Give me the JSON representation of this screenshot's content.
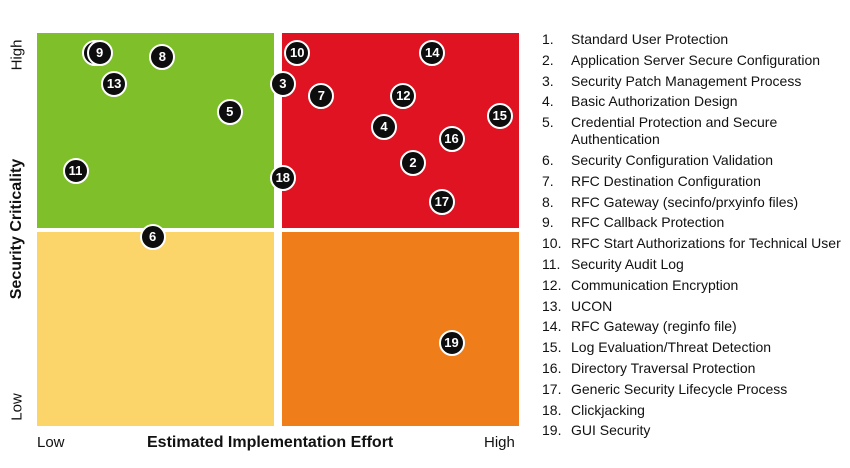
{
  "axes": {
    "y_title": "Security Criticality",
    "y_high": "High",
    "y_low": "Low",
    "x_title": "Estimated Implementation Effort",
    "x_low": "Low",
    "x_high": "High"
  },
  "colors": {
    "high_criticality_low_effort": "#7fbf2a",
    "high_criticality_high_effort": "#e01322",
    "low_criticality_low_effort": "#fbd46a",
    "low_criticality_high_effort": "#ee7d1a",
    "marker": "#0d0d0d"
  },
  "markers": [
    {
      "n": "1",
      "effort": 0.12,
      "criticality": 0.95
    },
    {
      "n": "2",
      "effort": 0.78,
      "criticality": 0.67
    },
    {
      "n": "3",
      "effort": 0.51,
      "criticality": 0.87
    },
    {
      "n": "4",
      "effort": 0.72,
      "criticality": 0.76
    },
    {
      "n": "5",
      "effort": 0.4,
      "criticality": 0.8
    },
    {
      "n": "6",
      "effort": 0.24,
      "criticality": 0.48
    },
    {
      "n": "7",
      "effort": 0.59,
      "criticality": 0.84
    },
    {
      "n": "8",
      "effort": 0.26,
      "criticality": 0.94
    },
    {
      "n": "9",
      "effort": 0.13,
      "criticality": 0.95
    },
    {
      "n": "10",
      "effort": 0.54,
      "criticality": 0.95
    },
    {
      "n": "11",
      "effort": 0.08,
      "criticality": 0.65
    },
    {
      "n": "12",
      "effort": 0.76,
      "criticality": 0.84
    },
    {
      "n": "13",
      "effort": 0.16,
      "criticality": 0.87
    },
    {
      "n": "14",
      "effort": 0.82,
      "criticality": 0.95
    },
    {
      "n": "15",
      "effort": 0.96,
      "criticality": 0.79
    },
    {
      "n": "16",
      "effort": 0.86,
      "criticality": 0.73
    },
    {
      "n": "17",
      "effort": 0.84,
      "criticality": 0.57
    },
    {
      "n": "18",
      "effort": 0.51,
      "criticality": 0.63
    },
    {
      "n": "19",
      "effort": 0.86,
      "criticality": 0.21
    }
  ],
  "legend": [
    {
      "num": "1.",
      "text": "Standard User Protection"
    },
    {
      "num": "2.",
      "text": "Application Server Secure Configuration"
    },
    {
      "num": "3.",
      "text": "Security Patch Management Process"
    },
    {
      "num": "4.",
      "text": "Basic Authorization Design"
    },
    {
      "num": "5.",
      "text": "Credential Protection and Secure Authentication"
    },
    {
      "num": "6.",
      "text": "Security Configuration Validation"
    },
    {
      "num": "7.",
      "text": "RFC Destination Configuration"
    },
    {
      "num": "8.",
      "text": "RFC Gateway (secinfo/prxyinfo files)"
    },
    {
      "num": "9.",
      "text": "RFC Callback Protection"
    },
    {
      "num": "10.",
      "text": "RFC Start Authorizations for Technical User"
    },
    {
      "num": "11.",
      "text": "Security Audit Log"
    },
    {
      "num": "12.",
      "text": "Communication Encryption"
    },
    {
      "num": "13.",
      "text": "UCON"
    },
    {
      "num": "14.",
      "text": "RFC Gateway (reginfo file)"
    },
    {
      "num": "15.",
      "text": "Log Evaluation/Threat Detection"
    },
    {
      "num": "16.",
      "text": "Directory Traversal Protection"
    },
    {
      "num": "17.",
      "text": "Generic Security Lifecycle Process"
    },
    {
      "num": "18.",
      "text": "Clickjacking"
    },
    {
      "num": "19.",
      "text": "GUI Security"
    }
  ]
}
